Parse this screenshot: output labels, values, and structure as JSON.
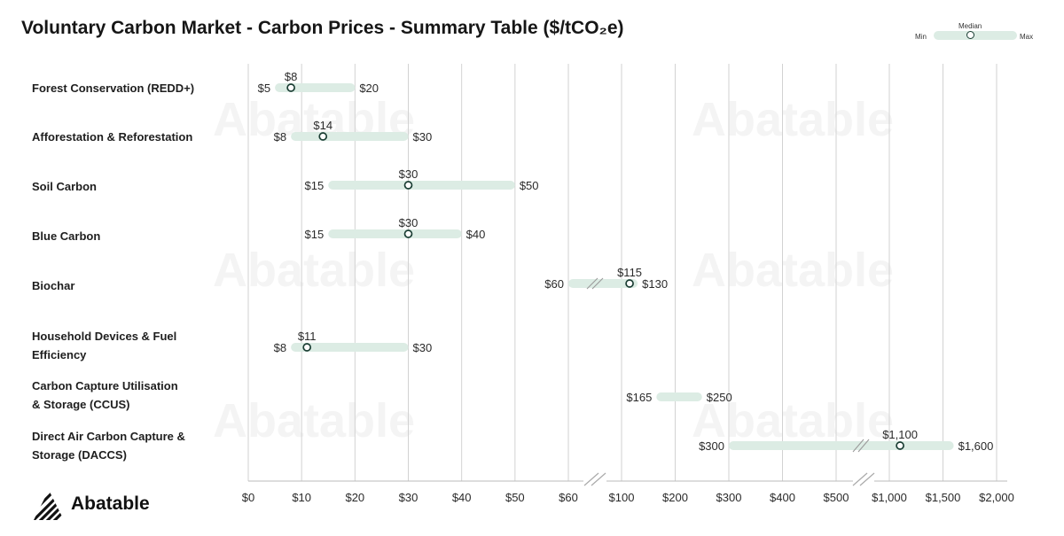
{
  "chart_data": {
    "type": "range",
    "title": "Voluntary Carbon Market - Carbon Prices - Summary Table ($/tCO₂e)",
    "legend": {
      "min": "Min",
      "median": "Median",
      "max": "Max",
      "placement": "top-right"
    },
    "grid": true,
    "axis_segments": [
      {
        "ylim": [
          0,
          60
        ],
        "ticks": [
          0,
          10,
          20,
          30,
          40,
          50,
          60
        ],
        "tick_labels": [
          "$0",
          "$10",
          "$20",
          "$30",
          "$40",
          "$50",
          "$60"
        ]
      },
      {
        "ylim": [
          60,
          500
        ],
        "ticks": [
          100,
          200,
          300,
          400,
          500
        ],
        "tick_labels": [
          "$100",
          "$200",
          "$300",
          "$400",
          "$500"
        ]
      },
      {
        "ylim": [
          500,
          2000
        ],
        "ticks": [
          1000,
          1500,
          2000
        ],
        "tick_labels": [
          "$1,000",
          "$1,500",
          "$2,000"
        ]
      }
    ],
    "categories": [
      {
        "name": "Forest Conservation (REDD+)",
        "min": 5,
        "median": 8,
        "max": 20,
        "min_label": "$5",
        "median_label": "$8",
        "max_label": "$20"
      },
      {
        "name": "Afforestation & Reforestation",
        "min": 8,
        "median": 14,
        "max": 30,
        "min_label": "$8",
        "median_label": "$14",
        "max_label": "$30"
      },
      {
        "name": "Soil Carbon",
        "min": 15,
        "median": 30,
        "max": 50,
        "min_label": "$15",
        "median_label": "$30",
        "max_label": "$50"
      },
      {
        "name": "Blue Carbon",
        "min": 15,
        "median": 30,
        "max": 40,
        "min_label": "$15",
        "median_label": "$30",
        "max_label": "$40"
      },
      {
        "name": "Biochar",
        "min": 60,
        "median": 115,
        "max": 130,
        "min_label": "$60",
        "median_label": "$115",
        "max_label": "$130"
      },
      {
        "name": "Household Devices & Fuel Efficiency",
        "min": 8,
        "median": 11,
        "max": 30,
        "min_label": "$8",
        "median_label": "$11",
        "max_label": "$30"
      },
      {
        "name": "Carbon Capture Utilisation & Storage (CCUS)",
        "min": 165,
        "median": null,
        "max": 250,
        "min_label": "$165",
        "median_label": "",
        "max_label": "$250"
      },
      {
        "name": "Direct Air Carbon Capture & Storage (DACCS)",
        "min": 300,
        "median": 1100,
        "max": 1600,
        "min_label": "$300",
        "median_label": "$1,100",
        "max_label": "$1,600"
      }
    ],
    "colors": {
      "range": "#dcece4",
      "median_stroke": "#1a3d33",
      "grid": "#d2d2d2",
      "text": "#2a2a2a"
    }
  },
  "watermark": "Abatable",
  "logo": {
    "text": "Abatable"
  }
}
